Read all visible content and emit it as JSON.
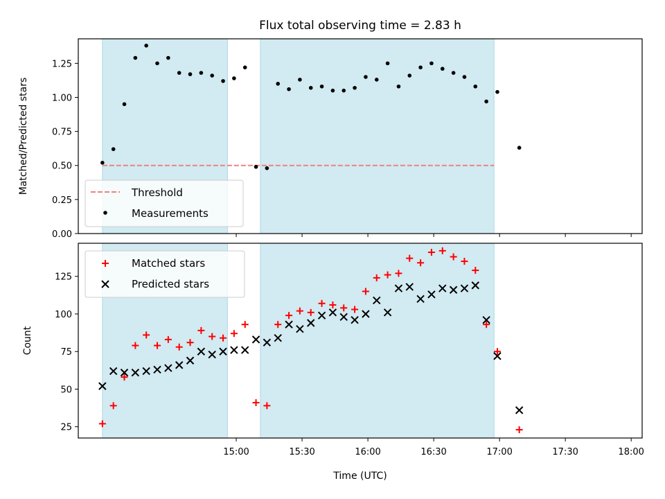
{
  "chart_data": {
    "title": "Flux total observing time = 2.83 h",
    "xlabel": "Time (UTC)",
    "x_ticks": [
      "15:00",
      "15:30",
      "16:00",
      "16:30",
      "17:00",
      "17:30",
      "18:00"
    ],
    "x_tick_minutes": [
      900,
      930,
      960,
      990,
      1020,
      1050,
      1080
    ],
    "xlim_minutes": [
      828,
      1085
    ],
    "shaded_intervals_minutes": [
      [
        839,
        896
      ],
      [
        911,
        1017.5
      ]
    ],
    "colors": {
      "shade": "#add8e6",
      "threshold": "#f08080",
      "measurement": "#000000",
      "matched": "#ff0000",
      "predicted": "#000000"
    },
    "panels": [
      {
        "type": "scatter",
        "ylabel": "Matched/Predicted stars",
        "ylim": [
          0.0,
          1.43
        ],
        "yticks": [
          0.0,
          0.25,
          0.5,
          0.75,
          1.0,
          1.25
        ],
        "ytick_labels": [
          "0.00",
          "0.25",
          "0.50",
          "0.75",
          "1.00",
          "1.25"
        ],
        "threshold": {
          "name": "Threshold",
          "value": 0.5,
          "x_range_minutes": [
            839,
            1017.5
          ]
        },
        "series": [
          {
            "name": "Measurements",
            "marker": "dot",
            "x_minutes": [
              839,
              844,
              849,
              854,
              859,
              864,
              869,
              874,
              879,
              884,
              889,
              894,
              899,
              904,
              909,
              914,
              919,
              924,
              929,
              934,
              939,
              944,
              949,
              954,
              959,
              964,
              969,
              974,
              979,
              984,
              989,
              994,
              999,
              1004,
              1009,
              1014,
              1019
            ],
            "y": [
              0.52,
              0.62,
              0.95,
              1.29,
              1.38,
              1.25,
              1.29,
              1.18,
              1.17,
              1.18,
              1.16,
              1.12,
              1.14,
              1.22,
              0.49,
              0.48,
              1.1,
              1.06,
              1.13,
              1.07,
              1.08,
              1.05,
              1.05,
              1.07,
              1.15,
              1.13,
              1.25,
              1.08,
              1.16,
              1.22,
              1.25,
              1.21,
              1.18,
              1.15,
              1.08,
              0.97,
              1.04
            ]
          }
        ],
        "legend_position": "lower-left"
      },
      {
        "type": "scatter",
        "ylabel": "Count",
        "ylim": [
          17.5,
          147
        ],
        "yticks": [
          25,
          50,
          75,
          100,
          125
        ],
        "ytick_labels": [
          "25",
          "50",
          "75",
          "100",
          "125"
        ],
        "series": [
          {
            "name": "Matched stars",
            "marker": "plus",
            "x_minutes": [
              839,
              844,
              849,
              854,
              859,
              864,
              869,
              874,
              879,
              884,
              889,
              894,
              899,
              904,
              909,
              914,
              919,
              924,
              929,
              934,
              939,
              944,
              949,
              954,
              959,
              964,
              969,
              974,
              979,
              984,
              989,
              994,
              999,
              1004,
              1009,
              1014,
              1019
            ],
            "y": [
              27,
              39,
              58,
              79,
              86,
              79,
              83,
              78,
              81,
              89,
              85,
              84,
              87,
              93,
              41,
              39,
              93,
              99,
              102,
              101,
              107,
              106,
              104,
              103,
              115,
              124,
              126,
              127,
              137,
              134,
              141,
              142,
              138,
              135,
              129,
              93,
              75
            ]
          },
          {
            "name": "Predicted stars",
            "marker": "x",
            "x_minutes": [
              839,
              844,
              849,
              854,
              859,
              864,
              869,
              874,
              879,
              884,
              889,
              894,
              899,
              904,
              909,
              914,
              919,
              924,
              929,
              934,
              939,
              944,
              949,
              954,
              959,
              964,
              969,
              974,
              979,
              984,
              989,
              994,
              999,
              1004,
              1009,
              1014,
              1019
            ],
            "y": [
              52,
              62,
              61,
              61,
              62,
              63,
              64,
              66,
              69,
              75,
              73,
              75,
              76,
              76,
              83,
              81,
              84,
              93,
              90,
              94,
              99,
              101,
              98,
              96,
              100,
              109,
              101,
              117,
              118,
              110,
              113,
              117,
              116,
              117,
              119,
              96,
              72
            ]
          }
        ],
        "legend_position": "top-left"
      }
    ]
  },
  "extra_points": {
    "panel0_last": {
      "x_minutes": 1029,
      "y": 0.63
    },
    "panel1_last": {
      "x_minutes": 1029,
      "matched": 23,
      "predicted": 36
    }
  }
}
